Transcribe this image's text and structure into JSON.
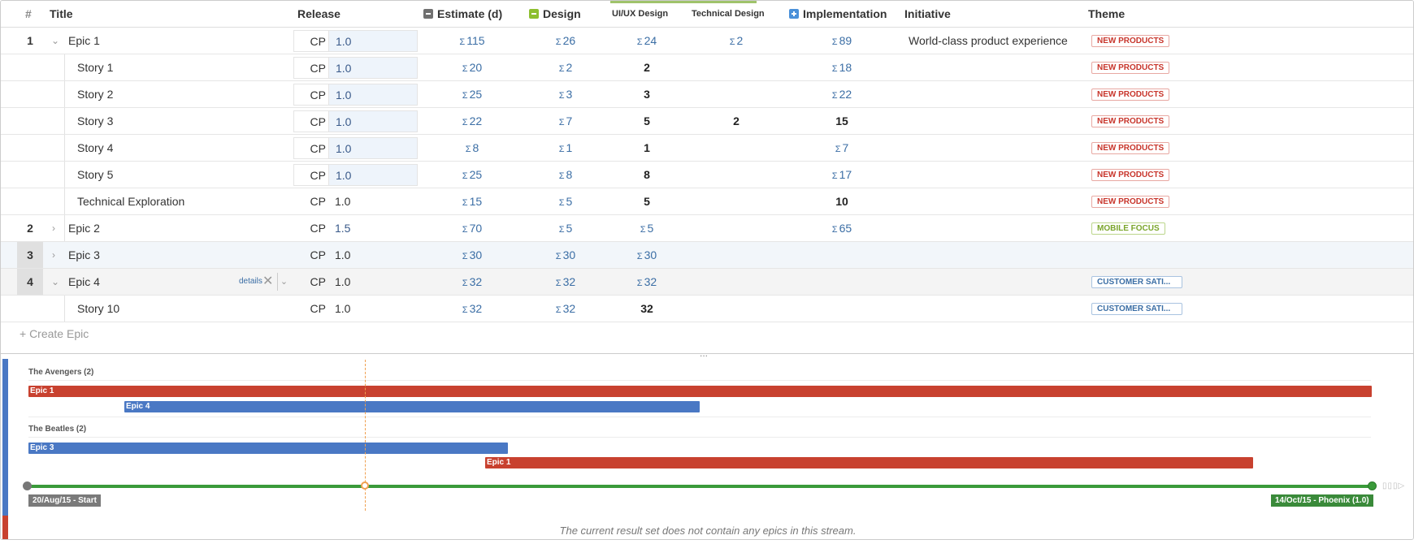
{
  "columns": {
    "rank": "#",
    "title": "Title",
    "release": "Release",
    "estimate": "Estimate (d)",
    "design": "Design",
    "uiux": "UI/UX Design",
    "technical": "Technical Design",
    "implementation": "Implementation",
    "initiative": "Initiative",
    "theme": "Theme"
  },
  "rows": [
    {
      "rank": "1",
      "title": "Epic 1",
      "release_prefix": "CP",
      "release": "1.0",
      "estimate": "115",
      "design": "26",
      "uiux": "24",
      "technical": "2",
      "implementation": "89",
      "initiative": "World-class product experience",
      "theme": "NEW PRODUCTS"
    },
    {
      "title": "Story 1",
      "release_prefix": "CP",
      "release": "1.0",
      "estimate": "20",
      "design": "2",
      "uiux": "2",
      "implementation": "18",
      "theme": "NEW PRODUCTS"
    },
    {
      "title": "Story 2",
      "release_prefix": "CP",
      "release": "1.0",
      "estimate": "25",
      "design": "3",
      "uiux": "3",
      "implementation": "22",
      "theme": "NEW PRODUCTS"
    },
    {
      "title": "Story 3",
      "release_prefix": "CP",
      "release": "1.0",
      "estimate": "22",
      "design": "7",
      "uiux": "5",
      "technical": "2",
      "implementation": "15",
      "theme": "NEW PRODUCTS"
    },
    {
      "title": "Story 4",
      "release_prefix": "CP",
      "release": "1.0",
      "estimate": "8",
      "design": "1",
      "uiux": "1",
      "implementation": "7",
      "theme": "NEW PRODUCTS"
    },
    {
      "title": "Story 5",
      "release_prefix": "CP",
      "release": "1.0",
      "estimate": "25",
      "design": "8",
      "uiux": "8",
      "implementation": "17",
      "theme": "NEW PRODUCTS"
    },
    {
      "title": "Technical Exploration",
      "release_prefix": "CP",
      "release": "1.0",
      "estimate": "15",
      "design": "5",
      "uiux": "5",
      "implementation": "10",
      "theme": "NEW PRODUCTS"
    },
    {
      "rank": "2",
      "title": "Epic 2",
      "release_prefix": "CP",
      "release": "1.5",
      "estimate": "70",
      "design": "5",
      "uiux": "5",
      "implementation": "65",
      "theme": "MOBILE FOCUS"
    },
    {
      "rank": "3",
      "title": "Epic 3",
      "release_prefix": "CP",
      "release": "1.0",
      "estimate": "30",
      "design": "30",
      "uiux": "30"
    },
    {
      "rank": "4",
      "title": "Epic 4",
      "details": "details",
      "release_prefix": "CP",
      "release": "1.0",
      "estimate": "32",
      "design": "32",
      "uiux": "32",
      "theme": "CUSTOMER SATI..."
    },
    {
      "title": "Story 10",
      "release_prefix": "CP",
      "release": "1.0",
      "estimate": "32",
      "design": "32",
      "uiux": "32",
      "theme": "CUSTOMER SATI..."
    }
  ],
  "sigma": "Σ",
  "create_epic": "+ Create Epic",
  "divider_dots": "...",
  "timeline": {
    "groups": [
      {
        "label": "The Avengers (2)",
        "bars": [
          {
            "label": "Epic 1",
            "color": "#c8412f"
          },
          {
            "label": "Epic 4",
            "color": "#4a78c4"
          }
        ]
      },
      {
        "label": "The Beatles (2)",
        "bars": [
          {
            "label": "Epic 3",
            "color": "#4a78c4"
          },
          {
            "label": "Epic 1",
            "color": "#c8412f"
          }
        ]
      }
    ],
    "start_label": "20/Aug/15 - Start",
    "end_label": "14/Oct/15 - Phoenix (1.0)",
    "message": "The current result set does not contain any epics in this stream."
  },
  "colors": {
    "accent_blue": "#4a78c4",
    "accent_red": "#c8412f",
    "accent_green": "#3a9a3a"
  }
}
